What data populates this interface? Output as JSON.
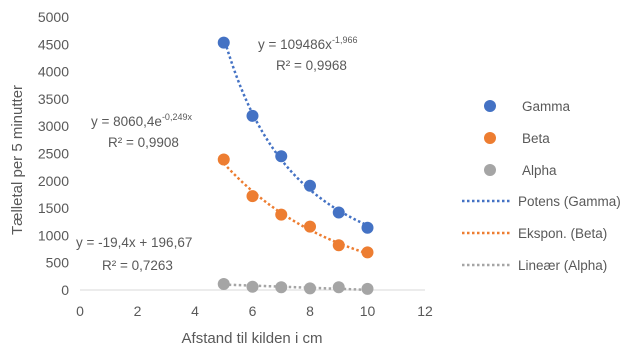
{
  "chart_data": {
    "type": "scatter",
    "xlabel": "Afstand til kilden i cm",
    "ylabel": "Tælletal per 5 minutter",
    "xlim": [
      0,
      12
    ],
    "ylim": [
      0,
      5000
    ],
    "x_ticks": [
      "0",
      "2",
      "4",
      "6",
      "8",
      "10",
      "12"
    ],
    "y_ticks": [
      "0",
      "500",
      "1000",
      "1500",
      "2000",
      "2500",
      "3000",
      "3500",
      "4000",
      "4500",
      "5000"
    ],
    "grid": false,
    "legend_position": "right",
    "series": [
      {
        "name": "Gamma",
        "color": "#4472C4",
        "points": [
          [
            5,
            4530
          ],
          [
            6,
            3190
          ],
          [
            7,
            2450
          ],
          [
            8,
            1910
          ],
          [
            9,
            1420
          ],
          [
            10,
            1140
          ]
        ]
      },
      {
        "name": "Beta",
        "color": "#ED7D31",
        "points": [
          [
            5,
            2390
          ],
          [
            6,
            1720
          ],
          [
            7,
            1380
          ],
          [
            8,
            1160
          ],
          [
            9,
            820
          ],
          [
            10,
            690
          ]
        ]
      },
      {
        "name": "Alpha",
        "color": "#A5A5A5",
        "points": [
          [
            5,
            110
          ],
          [
            6,
            60
          ],
          [
            7,
            50
          ],
          [
            8,
            30
          ],
          [
            9,
            50
          ],
          [
            10,
            20
          ]
        ]
      }
    ],
    "trendlines": [
      {
        "name": "Potens (Gamma)",
        "kind": "power",
        "a": 109486,
        "b": -1.966,
        "color": "#4472C4",
        "equation": {
          "main": "y = 109486x",
          "sup": "-1,966"
        },
        "r2": "R² = 0,9968"
      },
      {
        "name": "Ekspon. (Beta)",
        "kind": "exponential",
        "a": 8060.4,
        "b": -0.249,
        "color": "#ED7D31",
        "equation": {
          "main": "y = 8060,4e",
          "sup": "-0,249x"
        },
        "r2": "R² = 0,9908"
      },
      {
        "name": "Lineær (Alpha)",
        "kind": "linear",
        "a": -19.4,
        "b": 196.67,
        "color": "#A5A5A5",
        "equation": {
          "main": "y = -19,4x + 196,67",
          "sup": ""
        },
        "r2": "R² = 0,7263"
      }
    ]
  }
}
